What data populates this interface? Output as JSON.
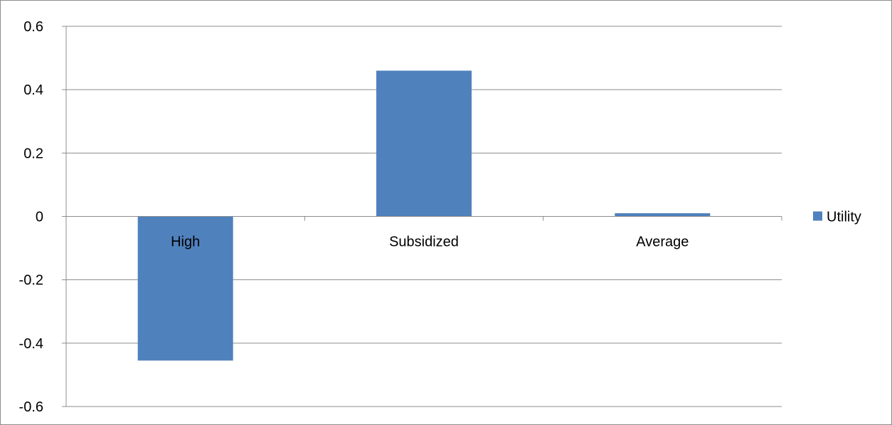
{
  "chart_data": {
    "type": "bar",
    "categories": [
      "High",
      "Subsidized",
      "Average"
    ],
    "series": [
      {
        "name": "Utility",
        "values": [
          -0.455,
          0.46,
          0.01
        ],
        "color": "#4f81bd"
      }
    ],
    "title": "",
    "xlabel": "",
    "ylabel": "",
    "ylim": [
      -0.6,
      0.6
    ],
    "yticks": [
      0.6,
      0.4,
      0.2,
      0,
      -0.2,
      -0.4,
      -0.6
    ],
    "ytick_labels": [
      "0.6",
      "0.4",
      "0.2",
      "0",
      "-0.2",
      "-0.4",
      "-0.6"
    ],
    "grid": true,
    "legend": {
      "position": "right",
      "entries": [
        "Utility"
      ]
    }
  }
}
